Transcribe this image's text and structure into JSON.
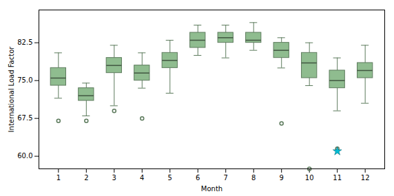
{
  "chart_data": {
    "type": "box",
    "xlabel": "Month",
    "ylabel": "International Load Factor",
    "x": [
      1,
      2,
      3,
      4,
      5,
      6,
      7,
      8,
      9,
      10,
      11,
      12
    ],
    "xlim": [
      0.3,
      12.7
    ],
    "xticks": [
      1,
      2,
      3,
      4,
      5,
      6,
      7,
      8,
      9,
      10,
      11,
      12
    ],
    "ylim": [
      57.5,
      89
    ],
    "yticks": [
      {
        "value": 60.0,
        "label": "60.0"
      },
      67.5,
      {
        "value": 75.0,
        "label": "75.0"
      },
      82.5
    ],
    "series": [
      {
        "type": "box",
        "color": "#8fbc8f",
        "whislo": [
          71.5,
          68.0,
          70.0,
          73.5,
          72.5,
          80.0,
          79.5,
          81.0,
          77.5,
          74.0,
          69.0,
          70.5
        ],
        "q1": [
          74.0,
          71.0,
          76.5,
          75.0,
          77.5,
          81.5,
          82.5,
          82.5,
          79.5,
          75.5,
          73.5,
          75.5
        ],
        "med": [
          75.5,
          72.0,
          78.0,
          76.5,
          79.0,
          83.0,
          83.5,
          83.0,
          81.0,
          78.5,
          75.0,
          77.0
        ],
        "q3": [
          77.5,
          73.5,
          79.5,
          78.0,
          80.5,
          84.5,
          84.5,
          84.5,
          82.5,
          80.5,
          77.0,
          78.5
        ],
        "whishi": [
          80.5,
          74.5,
          82.0,
          80.5,
          83.0,
          86.0,
          86.0,
          86.5,
          83.5,
          82.5,
          79.5,
          82.0
        ],
        "fliers": [
          [
            67.0
          ],
          [
            67.0
          ],
          [
            69.0
          ],
          [
            67.5
          ],
          [],
          [],
          [],
          [],
          [
            66.5
          ],
          [
            57.5
          ],
          [
            61.5
          ],
          []
        ]
      },
      {
        "type": "scatter",
        "marker": "star",
        "color": "#00bcd4",
        "x": [
          11
        ],
        "values": [
          61.0
        ]
      }
    ]
  }
}
